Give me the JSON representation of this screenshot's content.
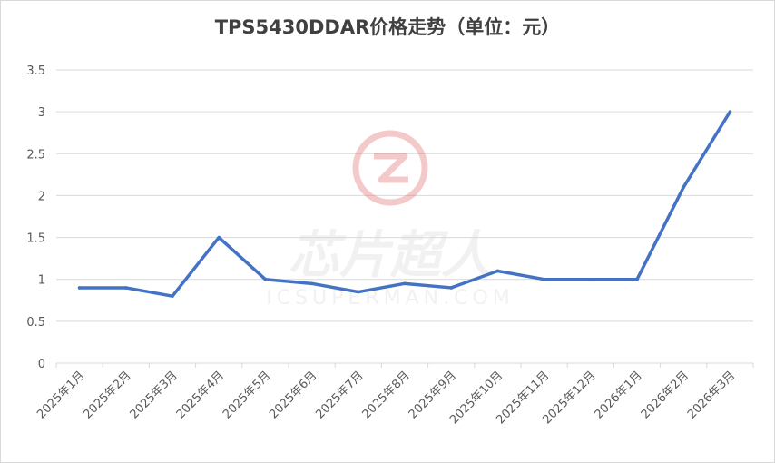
{
  "chart_data": {
    "type": "line",
    "title": "TPS5430DDAR价格走势（单位：元）",
    "xlabel": "",
    "ylabel": "",
    "categories": [
      "2025年1月",
      "2025年2月",
      "2025年3月",
      "2025年4月",
      "2025年5月",
      "2025年6月",
      "2025年7月",
      "2025年8月",
      "2025年9月",
      "2025年10月",
      "2025年11月",
      "2025年12月",
      "2026年1月",
      "2026年2月",
      "2026年3月"
    ],
    "series": [
      {
        "values": [
          0.9,
          0.9,
          0.8,
          1.5,
          1.0,
          0.95,
          0.85,
          0.95,
          0.9,
          1.1,
          1.0,
          1.0,
          1.0,
          2.1,
          3.0
        ]
      }
    ],
    "ylim": [
      0,
      3.5
    ],
    "yticks": [
      "0",
      "0.5",
      "1",
      "1.5",
      "2",
      "2.5",
      "3",
      "3.5"
    ],
    "grid": true,
    "legend": "none",
    "line_color": "#4472c4",
    "grid_color": "#d9d9d9"
  },
  "watermark": {
    "cn": "芯片超人",
    "en": "ICSUPERMAN.COM",
    "color": "#e8a0a0"
  }
}
